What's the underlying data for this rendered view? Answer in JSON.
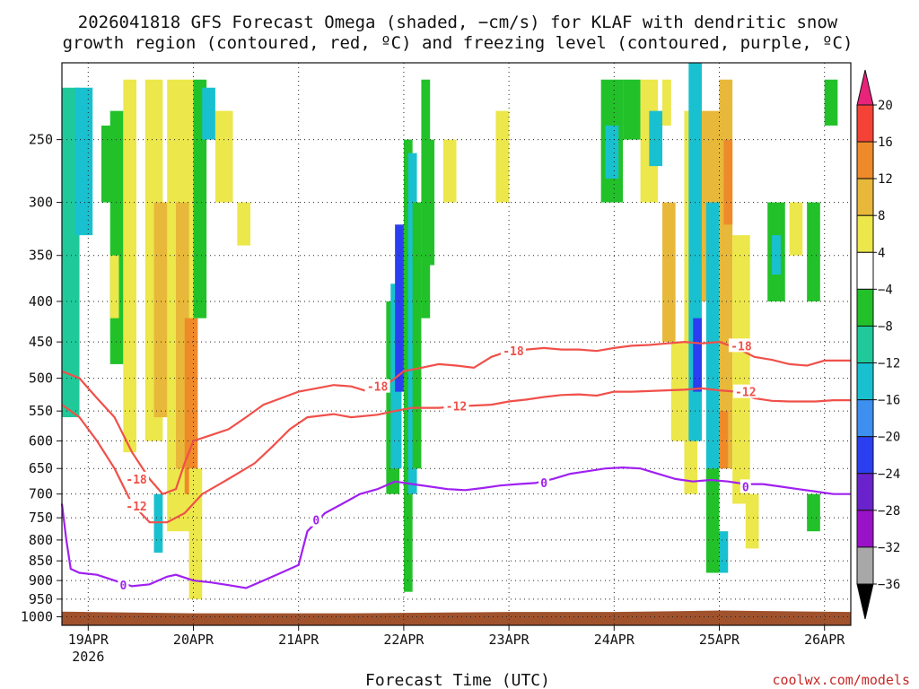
{
  "chart_data": {
    "type": "heatmap",
    "title_lines": [
      "2026041818 GFS Forecast Omega (shaded, −cm/s) for KLAF with dendritic snow",
      "growth region (contoured, red, ºC) and freezing level (contoured, purple, ºC)"
    ],
    "xlabel": "Forecast Time (UTC)",
    "credit": "coolwx.com/models",
    "x_ticks": [
      {
        "label": "19APR",
        "year": "2026",
        "t": 0
      },
      {
        "label": "20APR",
        "t": 24
      },
      {
        "label": "21APR",
        "t": 48
      },
      {
        "label": "22APR",
        "t": 72
      },
      {
        "label": "23APR",
        "t": 96
      },
      {
        "label": "24APR",
        "t": 120
      },
      {
        "label": "25APR",
        "t": 144
      },
      {
        "label": "26APR",
        "t": 168
      }
    ],
    "xlim": [
      -6,
      174
    ],
    "y_ticks": [
      250,
      300,
      350,
      400,
      450,
      500,
      550,
      600,
      650,
      700,
      750,
      800,
      850,
      900,
      950,
      1000
    ],
    "ylim_hPa": [
      200,
      1025
    ],
    "y_scale": "log-pressure",
    "grid": true,
    "colorbar": {
      "levels": [
        20,
        16,
        12,
        8,
        4,
        -4,
        -8,
        -12,
        -16,
        -20,
        -24,
        -28,
        -32,
        -36
      ],
      "colors": [
        "#e8237a",
        "#f44336",
        "#ef8a2a",
        "#e8b83a",
        "#ece74a",
        "#ffffff",
        "#22c12a",
        "#1fc99a",
        "#19c0cf",
        "#3d8ff0",
        "#2b3ff0",
        "#6a22cc",
        "#9a12c8",
        "#a8a8a8",
        "#000000"
      ]
    },
    "terrain_color": "#a0522d",
    "omega_regions": [
      {
        "t0": -6,
        "t1": -2,
        "p0": 215,
        "p1": 560,
        "v": -8
      },
      {
        "t0": -3,
        "t1": 1,
        "p0": 215,
        "p1": 330,
        "v": -14
      },
      {
        "t0": 3,
        "t1": 5.5,
        "p0": 240,
        "p1": 300,
        "v": -6
      },
      {
        "t0": 5,
        "t1": 8,
        "p0": 230,
        "p1": 480,
        "v": -6
      },
      {
        "t0": 8,
        "t1": 11,
        "p0": 210,
        "p1": 620,
        "v": 6
      },
      {
        "t0": 13,
        "t1": 17,
        "p0": 210,
        "p1": 600,
        "v": 6
      },
      {
        "t0": 15,
        "t1": 20,
        "p0": 300,
        "p1": 560,
        "v": 10
      },
      {
        "t0": 18,
        "t1": 24,
        "p0": 210,
        "p1": 780,
        "v": 6
      },
      {
        "t0": 20,
        "t1": 23,
        "p0": 300,
        "p1": 650,
        "v": 10
      },
      {
        "t0": 22,
        "t1": 25,
        "p0": 420,
        "p1": 700,
        "v": 15
      },
      {
        "t0": 23,
        "t1": 26,
        "p0": 650,
        "p1": 950,
        "v": 6
      },
      {
        "t0": 24,
        "t1": 27,
        "p0": 210,
        "p1": 420,
        "v": -6
      },
      {
        "t0": 26,
        "t1": 29,
        "p0": 215,
        "p1": 250,
        "v": -14
      },
      {
        "t0": 29,
        "t1": 33,
        "p0": 230,
        "p1": 300,
        "v": 6
      },
      {
        "t0": 34,
        "t1": 37,
        "p0": 300,
        "p1": 340,
        "v": 6
      },
      {
        "t0": 5,
        "t1": 7,
        "p0": 350,
        "p1": 420,
        "v": 6
      },
      {
        "t0": 15,
        "t1": 17,
        "p0": 700,
        "p1": 830,
        "v": -14
      },
      {
        "t0": 68,
        "t1": 71,
        "p0": 400,
        "p1": 700,
        "v": -6
      },
      {
        "t0": 69,
        "t1": 71.5,
        "p0": 380,
        "p1": 650,
        "v": -14
      },
      {
        "t0": 70,
        "t1": 72,
        "p0": 320,
        "p1": 520,
        "v": -20
      },
      {
        "t0": 72,
        "t1": 74,
        "p0": 250,
        "p1": 930,
        "v": -6
      },
      {
        "t0": 73,
        "t1": 75,
        "p0": 260,
        "p1": 700,
        "v": -14
      },
      {
        "t0": 74,
        "t1": 76,
        "p0": 300,
        "p1": 650,
        "v": -6
      },
      {
        "t0": 76,
        "t1": 78,
        "p0": 210,
        "p1": 420,
        "v": -6
      },
      {
        "t0": 77,
        "t1": 79,
        "p0": 250,
        "p1": 360,
        "v": -6
      },
      {
        "t0": 81,
        "t1": 84,
        "p0": 250,
        "p1": 300,
        "v": 6
      },
      {
        "t0": 93,
        "t1": 96,
        "p0": 230,
        "p1": 300,
        "v": 6
      },
      {
        "t0": 117,
        "t1": 122,
        "p0": 210,
        "p1": 300,
        "v": -6
      },
      {
        "t0": 118,
        "t1": 121,
        "p0": 240,
        "p1": 280,
        "v": -14
      },
      {
        "t0": 122,
        "t1": 126,
        "p0": 210,
        "p1": 250,
        "v": -6
      },
      {
        "t0": 126,
        "t1": 130,
        "p0": 210,
        "p1": 300,
        "v": 6
      },
      {
        "t0": 128,
        "t1": 131,
        "p0": 230,
        "p1": 270,
        "v": -14
      },
      {
        "t0": 131,
        "t1": 133,
        "p0": 210,
        "p1": 240,
        "v": 6
      },
      {
        "t0": 131,
        "t1": 134,
        "p0": 300,
        "p1": 450,
        "v": 10
      },
      {
        "t0": 133,
        "t1": 136,
        "p0": 450,
        "p1": 600,
        "v": 6
      },
      {
        "t0": 136,
        "t1": 139,
        "p0": 230,
        "p1": 700,
        "v": 6
      },
      {
        "t0": 137,
        "t1": 140,
        "p0": 200,
        "p1": 600,
        "v": -14
      },
      {
        "t0": 138,
        "t1": 140,
        "p0": 420,
        "p1": 520,
        "v": -22
      },
      {
        "t0": 140,
        "t1": 144,
        "p0": 230,
        "p1": 400,
        "v": 10
      },
      {
        "t0": 141,
        "t1": 144,
        "p0": 300,
        "p1": 700,
        "v": -14
      },
      {
        "t0": 144,
        "t1": 147,
        "p0": 210,
        "p1": 650,
        "v": 10
      },
      {
        "t0": 144,
        "t1": 146,
        "p0": 550,
        "p1": 650,
        "v": 16
      },
      {
        "t0": 145,
        "t1": 147,
        "p0": 250,
        "p1": 320,
        "v": 15
      },
      {
        "t0": 143,
        "t1": 146,
        "p0": 780,
        "p1": 880,
        "v": -14
      },
      {
        "t0": 141,
        "t1": 144,
        "p0": 650,
        "p1": 880,
        "v": -6
      },
      {
        "t0": 147,
        "t1": 151,
        "p0": 330,
        "p1": 720,
        "v": 6
      },
      {
        "t0": 150,
        "t1": 153,
        "p0": 700,
        "p1": 820,
        "v": 6
      },
      {
        "t0": 155,
        "t1": 159,
        "p0": 300,
        "p1": 400,
        "v": -6
      },
      {
        "t0": 156,
        "t1": 158,
        "p0": 330,
        "p1": 370,
        "v": -14
      },
      {
        "t0": 160,
        "t1": 163,
        "p0": 300,
        "p1": 350,
        "v": 6
      },
      {
        "t0": 164,
        "t1": 167,
        "p0": 300,
        "p1": 400,
        "v": -6
      },
      {
        "t0": 164,
        "t1": 167,
        "p0": 700,
        "p1": 780,
        "v": -6
      },
      {
        "t0": 168,
        "t1": 171,
        "p0": 210,
        "p1": 240,
        "v": -6
      }
    ],
    "contours": [
      {
        "level": -18,
        "color": "#f0504a",
        "points": [
          [
            -6,
            490
          ],
          [
            -2,
            500
          ],
          [
            2,
            530
          ],
          [
            6,
            560
          ],
          [
            10,
            620
          ],
          [
            14,
            670
          ],
          [
            17,
            700
          ],
          [
            20,
            690
          ],
          [
            22,
            640
          ],
          [
            24,
            600
          ],
          [
            28,
            590
          ],
          [
            32,
            580
          ],
          [
            36,
            560
          ],
          [
            40,
            540
          ],
          [
            44,
            530
          ],
          [
            48,
            520
          ],
          [
            52,
            515
          ],
          [
            56,
            510
          ],
          [
            60,
            512
          ],
          [
            64,
            520
          ],
          [
            68,
            510
          ],
          [
            72,
            490
          ],
          [
            76,
            485
          ],
          [
            80,
            480
          ],
          [
            84,
            482
          ],
          [
            88,
            485
          ],
          [
            92,
            470
          ],
          [
            96,
            462
          ],
          [
            100,
            460
          ],
          [
            104,
            458
          ],
          [
            108,
            460
          ],
          [
            112,
            460
          ],
          [
            116,
            462
          ],
          [
            120,
            458
          ],
          [
            124,
            455
          ],
          [
            128,
            454
          ],
          [
            132,
            452
          ],
          [
            136,
            450
          ],
          [
            140,
            452
          ],
          [
            144,
            450
          ],
          [
            148,
            458
          ],
          [
            152,
            470
          ],
          [
            156,
            474
          ],
          [
            160,
            480
          ],
          [
            164,
            482
          ],
          [
            168,
            475
          ],
          [
            174,
            475
          ]
        ],
        "label_t": 113,
        "label_p": 460
      },
      {
        "level": -12,
        "color": "#f0504a",
        "points": [
          [
            -6,
            540
          ],
          [
            -2,
            560
          ],
          [
            2,
            600
          ],
          [
            6,
            650
          ],
          [
            10,
            720
          ],
          [
            14,
            760
          ],
          [
            18,
            760
          ],
          [
            22,
            740
          ],
          [
            26,
            700
          ],
          [
            30,
            680
          ],
          [
            34,
            660
          ],
          [
            38,
            640
          ],
          [
            42,
            610
          ],
          [
            46,
            580
          ],
          [
            50,
            560
          ],
          [
            56,
            555
          ],
          [
            60,
            560
          ],
          [
            66,
            556
          ],
          [
            70,
            550
          ],
          [
            74,
            545
          ],
          [
            80,
            545
          ],
          [
            86,
            542
          ],
          [
            92,
            540
          ],
          [
            96,
            535
          ],
          [
            100,
            532
          ],
          [
            104,
            528
          ],
          [
            108,
            525
          ],
          [
            112,
            524
          ],
          [
            116,
            526
          ],
          [
            120,
            520
          ],
          [
            124,
            520
          ],
          [
            128,
            519
          ],
          [
            132,
            518
          ],
          [
            136,
            517
          ],
          [
            140,
            515
          ],
          [
            144,
            518
          ],
          [
            148,
            520
          ],
          [
            152,
            530
          ],
          [
            156,
            534
          ],
          [
            160,
            535
          ],
          [
            166,
            535
          ],
          [
            170,
            533
          ],
          [
            174,
            533
          ]
        ],
        "label_t": 101,
        "label_p": 535
      },
      {
        "level": 0,
        "color": "#a020f0",
        "points": [
          [
            -6,
            720
          ],
          [
            -5,
            800
          ],
          [
            -4,
            870
          ],
          [
            -2,
            880
          ],
          [
            2,
            885
          ],
          [
            6,
            900
          ],
          [
            10,
            915
          ],
          [
            14,
            910
          ],
          [
            18,
            890
          ],
          [
            20,
            885
          ],
          [
            24,
            900
          ],
          [
            28,
            905
          ],
          [
            32,
            912
          ],
          [
            36,
            920
          ],
          [
            40,
            900
          ],
          [
            44,
            880
          ],
          [
            48,
            860
          ],
          [
            50,
            780
          ],
          [
            54,
            740
          ],
          [
            58,
            720
          ],
          [
            62,
            700
          ],
          [
            66,
            690
          ],
          [
            70,
            675
          ],
          [
            74,
            680
          ],
          [
            78,
            685
          ],
          [
            82,
            690
          ],
          [
            86,
            692
          ],
          [
            90,
            688
          ],
          [
            94,
            683
          ],
          [
            98,
            680
          ],
          [
            102,
            678
          ],
          [
            106,
            670
          ],
          [
            110,
            660
          ],
          [
            114,
            655
          ],
          [
            118,
            650
          ],
          [
            122,
            648
          ],
          [
            126,
            650
          ],
          [
            130,
            660
          ],
          [
            134,
            670
          ],
          [
            138,
            675
          ],
          [
            142,
            672
          ],
          [
            146,
            675
          ],
          [
            150,
            680
          ],
          [
            154,
            680
          ],
          [
            158,
            685
          ],
          [
            162,
            690
          ],
          [
            166,
            695
          ],
          [
            170,
            700
          ],
          [
            174,
            700
          ]
        ],
        "label_t": 107,
        "label_p": 674
      }
    ],
    "contour_labels": [
      {
        "text": "-18",
        "t": 11,
        "p": 670,
        "color": "#f0504a"
      },
      {
        "text": "-12",
        "t": 11,
        "p": 725,
        "color": "#f0504a"
      },
      {
        "text": "-18",
        "t": 66,
        "p": 512,
        "color": "#f0504a"
      },
      {
        "text": "-18",
        "t": 97,
        "p": 462,
        "color": "#f0504a"
      },
      {
        "text": "-18",
        "t": 149,
        "p": 455,
        "color": "#f0504a"
      },
      {
        "text": "-12",
        "t": 84,
        "p": 542,
        "color": "#f0504a"
      },
      {
        "text": "-12",
        "t": 150,
        "p": 520,
        "color": "#f0504a"
      },
      {
        "text": "0",
        "t": 8,
        "p": 912,
        "color": "#a020f0"
      },
      {
        "text": "0",
        "t": 52,
        "p": 755,
        "color": "#a020f0"
      },
      {
        "text": "0",
        "t": 104,
        "p": 677,
        "color": "#a020f0"
      },
      {
        "text": "0",
        "t": 150,
        "p": 685,
        "color": "#a020f0"
      }
    ],
    "terrain_profile": [
      [
        -6,
        985
      ],
      [
        24,
        990
      ],
      [
        60,
        990
      ],
      [
        96,
        986
      ],
      [
        120,
        986
      ],
      [
        144,
        982
      ],
      [
        174,
        986
      ]
    ]
  }
}
